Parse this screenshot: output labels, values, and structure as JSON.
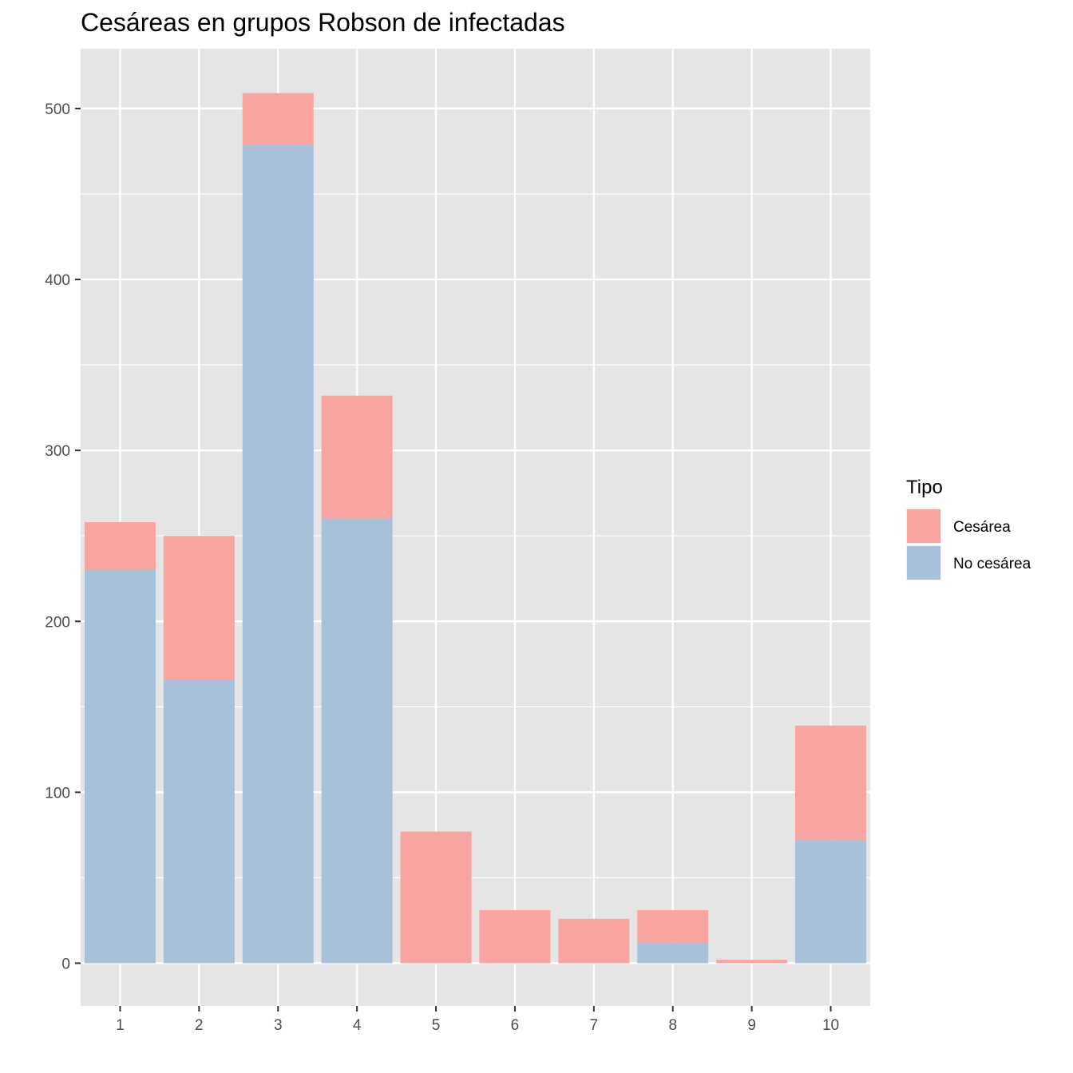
{
  "chart_data": {
    "type": "bar",
    "stacked": true,
    "title": "Cesáreas en grupos Robson de infectadas",
    "xlabel": "",
    "ylabel": "",
    "categories": [
      "1",
      "2",
      "3",
      "4",
      "5",
      "6",
      "7",
      "8",
      "9",
      "10"
    ],
    "series": [
      {
        "name": "Cesárea",
        "color": "#F8A4A0",
        "values": [
          28,
          84,
          30,
          72,
          77,
          31,
          26,
          19,
          2,
          67
        ]
      },
      {
        "name": "No cesárea",
        "color": "#A7C1DB",
        "values": [
          230,
          166,
          479,
          260,
          0,
          0,
          0,
          12,
          0,
          72
        ]
      }
    ],
    "stack_order_bottom_to_top": [
      "No cesárea",
      "Cesárea"
    ],
    "ylim": [
      -25,
      535
    ],
    "yticks": [
      0,
      100,
      200,
      300,
      400,
      500
    ],
    "grid": true,
    "legend": {
      "title": "Tipo",
      "position": "right"
    },
    "panel_color": "#E5E5E5"
  }
}
